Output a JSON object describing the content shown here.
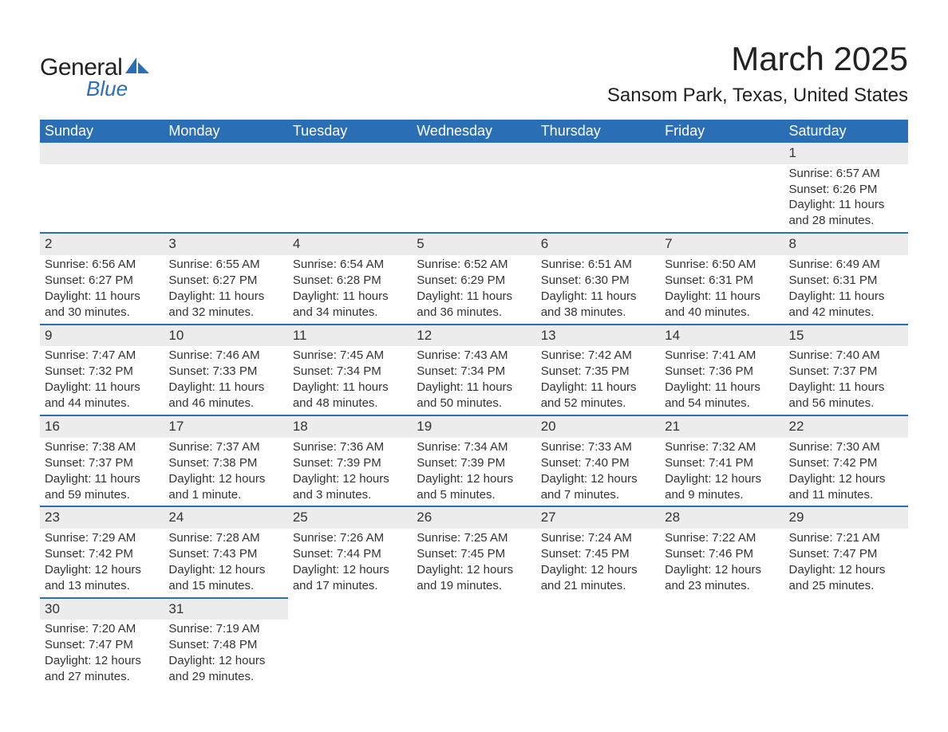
{
  "logo": {
    "text_general": "General",
    "text_blue": "Blue",
    "accent_color": "#2a6fb5"
  },
  "title": {
    "month": "March 2025",
    "location": "Sansom Park, Texas, United States"
  },
  "colors": {
    "header_bg": "#2a6fb5",
    "header_text": "#ffffff",
    "daynum_bg": "#ececec",
    "row_border": "#2a6fb5",
    "text": "#333333",
    "background": "#ffffff"
  },
  "weekdays": [
    "Sunday",
    "Monday",
    "Tuesday",
    "Wednesday",
    "Thursday",
    "Friday",
    "Saturday"
  ],
  "weeks": [
    [
      null,
      null,
      null,
      null,
      null,
      null,
      {
        "n": "1",
        "sunrise": "Sunrise: 6:57 AM",
        "sunset": "Sunset: 6:26 PM",
        "day1": "Daylight: 11 hours",
        "day2": "and 28 minutes."
      }
    ],
    [
      {
        "n": "2",
        "sunrise": "Sunrise: 6:56 AM",
        "sunset": "Sunset: 6:27 PM",
        "day1": "Daylight: 11 hours",
        "day2": "and 30 minutes."
      },
      {
        "n": "3",
        "sunrise": "Sunrise: 6:55 AM",
        "sunset": "Sunset: 6:27 PM",
        "day1": "Daylight: 11 hours",
        "day2": "and 32 minutes."
      },
      {
        "n": "4",
        "sunrise": "Sunrise: 6:54 AM",
        "sunset": "Sunset: 6:28 PM",
        "day1": "Daylight: 11 hours",
        "day2": "and 34 minutes."
      },
      {
        "n": "5",
        "sunrise": "Sunrise: 6:52 AM",
        "sunset": "Sunset: 6:29 PM",
        "day1": "Daylight: 11 hours",
        "day2": "and 36 minutes."
      },
      {
        "n": "6",
        "sunrise": "Sunrise: 6:51 AM",
        "sunset": "Sunset: 6:30 PM",
        "day1": "Daylight: 11 hours",
        "day2": "and 38 minutes."
      },
      {
        "n": "7",
        "sunrise": "Sunrise: 6:50 AM",
        "sunset": "Sunset: 6:31 PM",
        "day1": "Daylight: 11 hours",
        "day2": "and 40 minutes."
      },
      {
        "n": "8",
        "sunrise": "Sunrise: 6:49 AM",
        "sunset": "Sunset: 6:31 PM",
        "day1": "Daylight: 11 hours",
        "day2": "and 42 minutes."
      }
    ],
    [
      {
        "n": "9",
        "sunrise": "Sunrise: 7:47 AM",
        "sunset": "Sunset: 7:32 PM",
        "day1": "Daylight: 11 hours",
        "day2": "and 44 minutes."
      },
      {
        "n": "10",
        "sunrise": "Sunrise: 7:46 AM",
        "sunset": "Sunset: 7:33 PM",
        "day1": "Daylight: 11 hours",
        "day2": "and 46 minutes."
      },
      {
        "n": "11",
        "sunrise": "Sunrise: 7:45 AM",
        "sunset": "Sunset: 7:34 PM",
        "day1": "Daylight: 11 hours",
        "day2": "and 48 minutes."
      },
      {
        "n": "12",
        "sunrise": "Sunrise: 7:43 AM",
        "sunset": "Sunset: 7:34 PM",
        "day1": "Daylight: 11 hours",
        "day2": "and 50 minutes."
      },
      {
        "n": "13",
        "sunrise": "Sunrise: 7:42 AM",
        "sunset": "Sunset: 7:35 PM",
        "day1": "Daylight: 11 hours",
        "day2": "and 52 minutes."
      },
      {
        "n": "14",
        "sunrise": "Sunrise: 7:41 AM",
        "sunset": "Sunset: 7:36 PM",
        "day1": "Daylight: 11 hours",
        "day2": "and 54 minutes."
      },
      {
        "n": "15",
        "sunrise": "Sunrise: 7:40 AM",
        "sunset": "Sunset: 7:37 PM",
        "day1": "Daylight: 11 hours",
        "day2": "and 56 minutes."
      }
    ],
    [
      {
        "n": "16",
        "sunrise": "Sunrise: 7:38 AM",
        "sunset": "Sunset: 7:37 PM",
        "day1": "Daylight: 11 hours",
        "day2": "and 59 minutes."
      },
      {
        "n": "17",
        "sunrise": "Sunrise: 7:37 AM",
        "sunset": "Sunset: 7:38 PM",
        "day1": "Daylight: 12 hours",
        "day2": "and 1 minute."
      },
      {
        "n": "18",
        "sunrise": "Sunrise: 7:36 AM",
        "sunset": "Sunset: 7:39 PM",
        "day1": "Daylight: 12 hours",
        "day2": "and 3 minutes."
      },
      {
        "n": "19",
        "sunrise": "Sunrise: 7:34 AM",
        "sunset": "Sunset: 7:39 PM",
        "day1": "Daylight: 12 hours",
        "day2": "and 5 minutes."
      },
      {
        "n": "20",
        "sunrise": "Sunrise: 7:33 AM",
        "sunset": "Sunset: 7:40 PM",
        "day1": "Daylight: 12 hours",
        "day2": "and 7 minutes."
      },
      {
        "n": "21",
        "sunrise": "Sunrise: 7:32 AM",
        "sunset": "Sunset: 7:41 PM",
        "day1": "Daylight: 12 hours",
        "day2": "and 9 minutes."
      },
      {
        "n": "22",
        "sunrise": "Sunrise: 7:30 AM",
        "sunset": "Sunset: 7:42 PM",
        "day1": "Daylight: 12 hours",
        "day2": "and 11 minutes."
      }
    ],
    [
      {
        "n": "23",
        "sunrise": "Sunrise: 7:29 AM",
        "sunset": "Sunset: 7:42 PM",
        "day1": "Daylight: 12 hours",
        "day2": "and 13 minutes."
      },
      {
        "n": "24",
        "sunrise": "Sunrise: 7:28 AM",
        "sunset": "Sunset: 7:43 PM",
        "day1": "Daylight: 12 hours",
        "day2": "and 15 minutes."
      },
      {
        "n": "25",
        "sunrise": "Sunrise: 7:26 AM",
        "sunset": "Sunset: 7:44 PM",
        "day1": "Daylight: 12 hours",
        "day2": "and 17 minutes."
      },
      {
        "n": "26",
        "sunrise": "Sunrise: 7:25 AM",
        "sunset": "Sunset: 7:45 PM",
        "day1": "Daylight: 12 hours",
        "day2": "and 19 minutes."
      },
      {
        "n": "27",
        "sunrise": "Sunrise: 7:24 AM",
        "sunset": "Sunset: 7:45 PM",
        "day1": "Daylight: 12 hours",
        "day2": "and 21 minutes."
      },
      {
        "n": "28",
        "sunrise": "Sunrise: 7:22 AM",
        "sunset": "Sunset: 7:46 PM",
        "day1": "Daylight: 12 hours",
        "day2": "and 23 minutes."
      },
      {
        "n": "29",
        "sunrise": "Sunrise: 7:21 AM",
        "sunset": "Sunset: 7:47 PM",
        "day1": "Daylight: 12 hours",
        "day2": "and 25 minutes."
      }
    ],
    [
      {
        "n": "30",
        "sunrise": "Sunrise: 7:20 AM",
        "sunset": "Sunset: 7:47 PM",
        "day1": "Daylight: 12 hours",
        "day2": "and 27 minutes."
      },
      {
        "n": "31",
        "sunrise": "Sunrise: 7:19 AM",
        "sunset": "Sunset: 7:48 PM",
        "day1": "Daylight: 12 hours",
        "day2": "and 29 minutes."
      },
      null,
      null,
      null,
      null,
      null
    ]
  ]
}
